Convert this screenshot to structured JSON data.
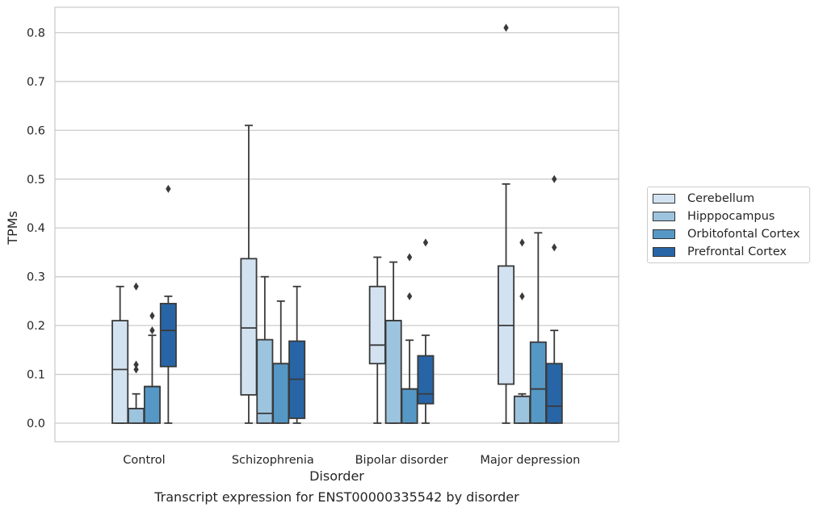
{
  "chart_data": {
    "type": "box",
    "xlabel": "Disorder",
    "ylabel": "TPMs",
    "caption": "Transcript expression for ENST00000335542 by disorder",
    "categories": [
      "Control",
      "Schizophrenia",
      "Bipolar disorder",
      "Major depression"
    ],
    "ylim": [
      -0.04,
      0.855
    ],
    "yticks": [
      "0.0",
      "0.1",
      "0.2",
      "0.3",
      "0.4",
      "0.5",
      "0.6",
      "0.7",
      "0.8"
    ],
    "grid": true,
    "legend_position": "right",
    "series": [
      {
        "name": "Cerebellum",
        "color": "#d2e2f0",
        "boxes": [
          {
            "whislo": 0.0,
            "q1": 0.0,
            "med": 0.11,
            "q3": 0.21,
            "whishi": 0.28,
            "fliers": []
          },
          {
            "whislo": 0.0,
            "q1": 0.058,
            "med": 0.195,
            "q3": 0.337,
            "whishi": 0.61,
            "fliers": []
          },
          {
            "whislo": 0.0,
            "q1": 0.122,
            "med": 0.16,
            "q3": 0.28,
            "whishi": 0.34,
            "fliers": []
          },
          {
            "whislo": 0.0,
            "q1": 0.08,
            "med": 0.2,
            "q3": 0.322,
            "whishi": 0.49,
            "fliers": [
              0.81
            ]
          }
        ]
      },
      {
        "name": "Hipppocampus",
        "color": "#9dc4df",
        "boxes": [
          {
            "whislo": 0.0,
            "q1": 0.0,
            "med": 0.03,
            "q3": 0.03,
            "whishi": 0.06,
            "fliers": [
              0.28,
              0.12,
              0.11
            ]
          },
          {
            "whislo": 0.0,
            "q1": 0.0,
            "med": 0.02,
            "q3": 0.171,
            "whishi": 0.3,
            "fliers": []
          },
          {
            "whislo": 0.0,
            "q1": 0.0,
            "med": 0.21,
            "q3": 0.21,
            "whishi": 0.33,
            "fliers": []
          },
          {
            "whislo": 0.0,
            "q1": 0.0,
            "med": 0.055,
            "q3": 0.055,
            "whishi": 0.06,
            "fliers": [
              0.37,
              0.26
            ]
          }
        ]
      },
      {
        "name": "Orbitofontal Cortex",
        "color": "#5698c5",
        "boxes": [
          {
            "whislo": 0.0,
            "q1": 0.0,
            "med": 0.075,
            "q3": 0.075,
            "whishi": 0.18,
            "fliers": [
              0.22,
              0.19
            ]
          },
          {
            "whislo": 0.0,
            "q1": 0.0,
            "med": 0.122,
            "q3": 0.122,
            "whishi": 0.25,
            "fliers": []
          },
          {
            "whislo": 0.0,
            "q1": 0.0,
            "med": 0.07,
            "q3": 0.07,
            "whishi": 0.17,
            "fliers": [
              0.34,
              0.26
            ]
          },
          {
            "whislo": 0.0,
            "q1": 0.0,
            "med": 0.07,
            "q3": 0.166,
            "whishi": 0.39,
            "fliers": []
          }
        ]
      },
      {
        "name": "Prefrontal Cortex",
        "color": "#2865a6",
        "boxes": [
          {
            "whislo": 0.0,
            "q1": 0.116,
            "med": 0.19,
            "q3": 0.245,
            "whishi": 0.26,
            "fliers": [
              0.48
            ]
          },
          {
            "whislo": 0.0,
            "q1": 0.01,
            "med": 0.09,
            "q3": 0.168,
            "whishi": 0.28,
            "fliers": []
          },
          {
            "whislo": 0.0,
            "q1": 0.04,
            "med": 0.06,
            "q3": 0.138,
            "whishi": 0.18,
            "fliers": [
              0.37
            ]
          },
          {
            "whislo": 0.0,
            "q1": 0.0,
            "med": 0.035,
            "q3": 0.122,
            "whishi": 0.19,
            "fliers": [
              0.5,
              0.36
            ]
          }
        ]
      }
    ]
  }
}
